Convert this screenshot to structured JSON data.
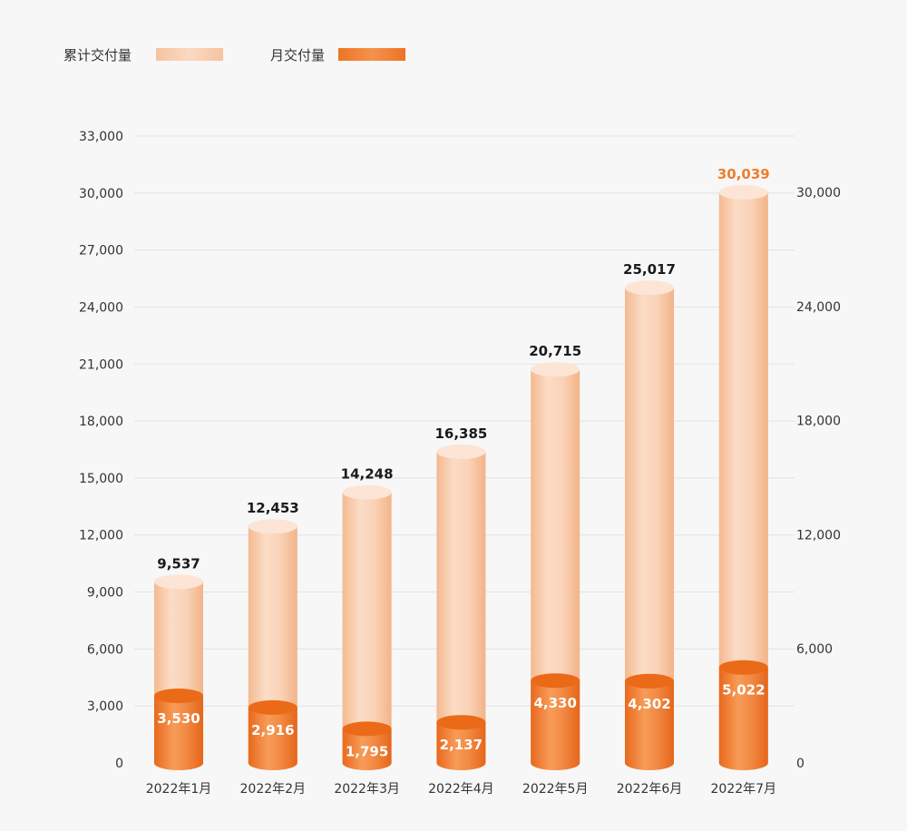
{
  "chart_data": {
    "type": "bar",
    "legend": {
      "placement": "top-left",
      "items": [
        {
          "name": "累计交付量",
          "color": "#f8c9a8"
        },
        {
          "name": "月交付量",
          "color": "#ef7d2e"
        }
      ]
    },
    "categories": [
      "2022年1月",
      "2022年2月",
      "2022年3月",
      "2022年4月",
      "2022年5月",
      "2022年6月",
      "2022年7月"
    ],
    "series": [
      {
        "name": "累计交付量",
        "axis": "left",
        "values": [
          9537,
          12453,
          14248,
          16385,
          20715,
          25017,
          30039
        ],
        "labels": [
          "9,537",
          "12,453",
          "14,248",
          "16,385",
          "20,715",
          "25,017",
          "30,039"
        ],
        "color": "#f8c9a8"
      },
      {
        "name": "月交付量",
        "axis": "right",
        "values": [
          3530,
          2916,
          1795,
          2137,
          4330,
          4302,
          5022
        ],
        "labels": [
          "3,530",
          "2,916",
          "1,795",
          "2,137",
          "4,330",
          "4,302",
          "5,022"
        ],
        "color": "#ef7d2e"
      }
    ],
    "y_left": {
      "ylim": [
        0,
        33000
      ],
      "ticks": [
        "0",
        "3,000",
        "6,000",
        "9,000",
        "12,000",
        "15,000",
        "18,000",
        "21,000",
        "24,000",
        "27,000",
        "30,000",
        "33,000"
      ]
    },
    "y_right": {
      "ylim": [
        0,
        30000
      ],
      "ticks": [
        "0",
        "6,000",
        "12,000",
        "18,000",
        "24,000",
        "30,000"
      ]
    },
    "grid": true,
    "highlight_label_color": "#ef7d2e",
    "title": "",
    "xlabel": "",
    "ylabel": ""
  }
}
